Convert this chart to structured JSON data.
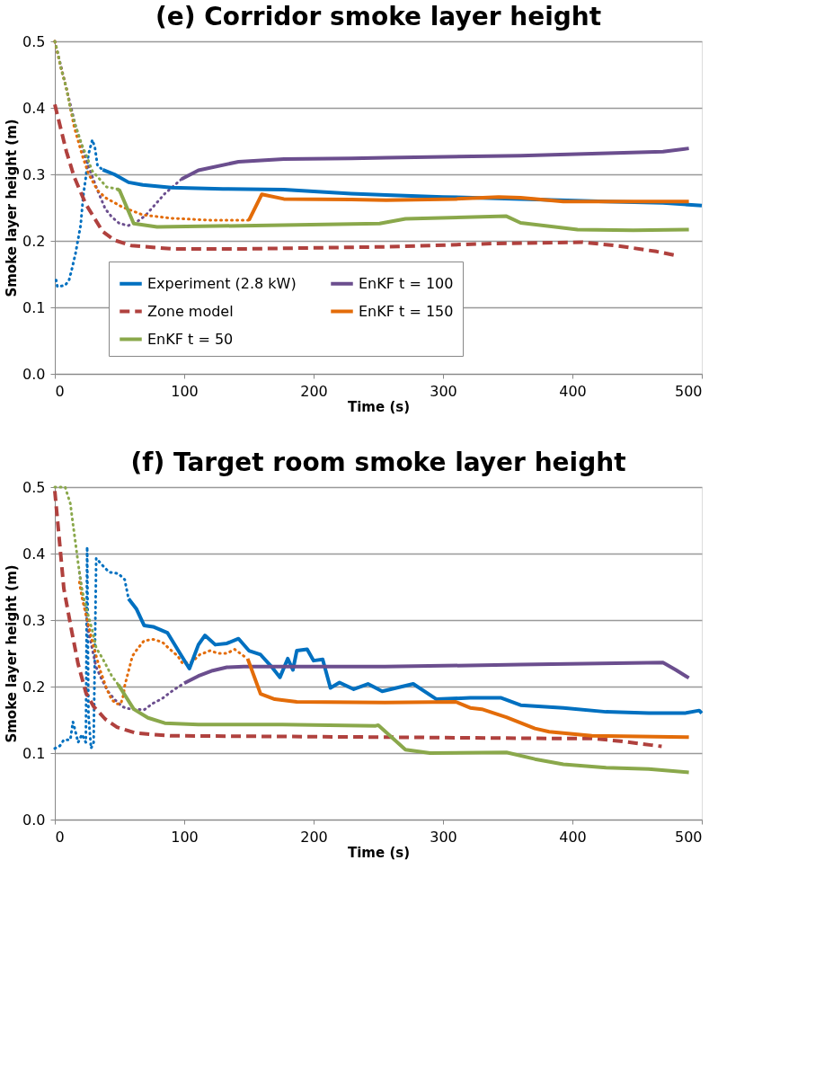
{
  "chart_data": [
    {
      "type": "line",
      "title": "(e) Corridor smoke layer height",
      "xlabel": "Time (s)",
      "ylabel": "Smoke layer height (m)",
      "xlim": [
        0,
        500
      ],
      "xticks": [
        0,
        100,
        200,
        300,
        400,
        500
      ],
      "ylim": [
        0,
        0.5
      ],
      "yticks": [
        {
          "value": 0,
          "label": "0.0"
        },
        0.1,
        0.2,
        0.3,
        0.4,
        0.5
      ],
      "grid": "y",
      "legend": "bottom",
      "series": [
        {
          "name": "Experiment (2.8 kW)",
          "color": "#0070c0",
          "line_style": "solid",
          "x": [
            37,
            46,
            57,
            68,
            90,
            130,
            177,
            229,
            256,
            300,
            360,
            426,
            470,
            500
          ],
          "values": [
            0.307,
            0.3,
            0.288,
            0.284,
            0.28,
            0.278,
            0.277,
            0.271,
            0.269,
            0.266,
            0.263,
            0.259,
            0.257,
            0.253
          ]
        },
        {
          "name": "Zone model",
          "color": "#b0413e",
          "line_style": "dashed",
          "x": [
            0,
            9,
            15,
            24,
            37,
            46,
            59,
            90,
            150,
            256,
            340,
            408,
            437,
            465,
            480
          ],
          "values": [
            0.405,
            0.334,
            0.296,
            0.255,
            0.214,
            0.201,
            0.193,
            0.188,
            0.188,
            0.191,
            0.196,
            0.198,
            0.192,
            0.184,
            0.178
          ]
        },
        {
          "name": "EnKF t = 50",
          "color": "#8aa84b",
          "line_style": "solid",
          "x": [
            48,
            50,
            61,
            79,
            155,
            251,
            271,
            349,
            360,
            404,
            447,
            490
          ],
          "values": [
            0.278,
            0.276,
            0.226,
            0.221,
            0.223,
            0.226,
            0.233,
            0.237,
            0.227,
            0.217,
            0.216,
            0.217
          ]
        },
        {
          "name": "EnKF t = 100",
          "color": "#6b4e8e",
          "line_style": "solid",
          "x": [
            98,
            111,
            142,
            177,
            229,
            256,
            360,
            470,
            490
          ],
          "values": [
            0.293,
            0.306,
            0.319,
            0.323,
            0.324,
            0.325,
            0.328,
            0.334,
            0.339
          ]
        },
        {
          "name": "EnKF t = 150",
          "color": "#e36c09",
          "line_style": "solid",
          "x": [
            150,
            160,
            177,
            229,
            256,
            310,
            343,
            360,
            393,
            490
          ],
          "values": [
            0.231,
            0.27,
            0.263,
            0.262,
            0.261,
            0.263,
            0.266,
            0.265,
            0.259,
            0.259
          ]
        },
        {
          "color": "#0070c0",
          "line_style": "dotted",
          "x": [
            1,
            2,
            8,
            11,
            13,
            16,
            20,
            22,
            24,
            26,
            29,
            31,
            33,
            37
          ],
          "values": [
            0.141,
            0.131,
            0.133,
            0.141,
            0.156,
            0.181,
            0.224,
            0.268,
            0.296,
            0.33,
            0.352,
            0.34,
            0.313,
            0.307
          ]
        },
        {
          "color": "#6b4e8e",
          "line_style": "dotted",
          "x": [
            0,
            9,
            16,
            25,
            33,
            39,
            44,
            50,
            57,
            63,
            70,
            75,
            80,
            85,
            91,
            98
          ],
          "values": [
            0.5,
            0.429,
            0.373,
            0.317,
            0.276,
            0.248,
            0.236,
            0.226,
            0.223,
            0.228,
            0.238,
            0.249,
            0.26,
            0.271,
            0.281,
            0.293
          ]
        },
        {
          "color": "#e36c09",
          "line_style": "dotted",
          "x": [
            0,
            5,
            9,
            15,
            21,
            26,
            33,
            39,
            52,
            68,
            90,
            120,
            150
          ],
          "values": [
            0.5,
            0.458,
            0.429,
            0.371,
            0.33,
            0.301,
            0.276,
            0.265,
            0.251,
            0.239,
            0.234,
            0.231,
            0.231
          ]
        },
        {
          "color": "#8aa84b",
          "line_style": "dotted",
          "x": [
            0,
            2,
            5,
            9,
            12,
            16,
            21,
            24,
            29,
            35,
            40,
            48
          ],
          "values": [
            0.5,
            0.485,
            0.458,
            0.429,
            0.4,
            0.373,
            0.344,
            0.33,
            0.305,
            0.292,
            0.281,
            0.278
          ]
        }
      ]
    },
    {
      "type": "line",
      "title": "(f) Target room smoke layer height",
      "xlabel": "Time (s)",
      "ylabel": "Smoke layer height (m)",
      "xlim": [
        0,
        500
      ],
      "xticks": [
        0,
        100,
        200,
        300,
        400,
        500
      ],
      "ylim": [
        0,
        0.5
      ],
      "yticks": [
        {
          "value": 0,
          "label": "0.0"
        },
        0.1,
        0.2,
        0.3,
        0.4,
        0.5
      ],
      "grid": "y",
      "legend": "top right",
      "series": [
        {
          "name": "Experiment (2.8 kW)",
          "color": "#0070c0",
          "line_style": "solid",
          "x": [
            57,
            63,
            69,
            76,
            87,
            98,
            104,
            111,
            116,
            124,
            133,
            142,
            150,
            159,
            167,
            174,
            180,
            184,
            187,
            195,
            200,
            207,
            213,
            220,
            231,
            242,
            253,
            277,
            295,
            321,
            345,
            360,
            393,
            426,
            459,
            487,
            498,
            500
          ],
          "values": [
            0.332,
            0.317,
            0.292,
            0.29,
            0.281,
            0.246,
            0.227,
            0.263,
            0.277,
            0.263,
            0.265,
            0.272,
            0.254,
            0.248,
            0.231,
            0.214,
            0.242,
            0.225,
            0.254,
            0.256,
            0.239,
            0.241,
            0.198,
            0.206,
            0.196,
            0.204,
            0.193,
            0.204,
            0.181,
            0.183,
            0.183,
            0.172,
            0.168,
            0.162,
            0.16,
            0.16,
            0.164,
            0.16
          ]
        },
        {
          "name": "Zone model",
          "color": "#b0413e",
          "line_style": "dashed",
          "x": [
            0,
            3,
            7,
            13,
            18,
            24,
            30,
            39,
            48,
            63,
            89,
            253,
            382,
            415,
            437,
            461,
            469
          ],
          "values": [
            0.494,
            0.431,
            0.347,
            0.284,
            0.234,
            0.191,
            0.17,
            0.151,
            0.139,
            0.13,
            0.126,
            0.124,
            0.122,
            0.122,
            0.118,
            0.112,
            0.11
          ]
        },
        {
          "name": "EnKF t = 50",
          "color": "#8aa84b",
          "line_style": "solid",
          "x": [
            49,
            61,
            72,
            85,
            111,
            176,
            248,
            250,
            271,
            290,
            349,
            371,
            393,
            426,
            459,
            490
          ],
          "values": [
            0.203,
            0.166,
            0.153,
            0.145,
            0.143,
            0.143,
            0.141,
            0.142,
            0.105,
            0.1,
            0.101,
            0.091,
            0.083,
            0.078,
            0.076,
            0.071
          ]
        },
        {
          "name": "EnKF t = 100",
          "color": "#6b4e8e",
          "line_style": "solid",
          "x": [
            100,
            111,
            122,
            133,
            146,
            255,
            360,
            470,
            480,
            490
          ],
          "values": [
            0.205,
            0.216,
            0.224,
            0.229,
            0.23,
            0.23,
            0.233,
            0.236,
            0.225,
            0.213
          ]
        },
        {
          "name": "EnKF t = 150",
          "color": "#e36c09",
          "line_style": "solid",
          "x": [
            149,
            159,
            170,
            187,
            255,
            310,
            321,
            330,
            349,
            371,
            382,
            415,
            490
          ],
          "values": [
            0.242,
            0.189,
            0.181,
            0.177,
            0.176,
            0.177,
            0.168,
            0.166,
            0.154,
            0.137,
            0.132,
            0.126,
            0.124
          ]
        },
        {
          "color": "#0070c0",
          "line_style": "dotted",
          "x": [
            0,
            4,
            7,
            12,
            14,
            16,
            18,
            21,
            24,
            25,
            26,
            28,
            30,
            32,
            37,
            42,
            49,
            54,
            57
          ],
          "values": [
            0.107,
            0.111,
            0.12,
            0.12,
            0.147,
            0.132,
            0.116,
            0.128,
            0.116,
            0.41,
            0.158,
            0.107,
            0.116,
            0.393,
            0.382,
            0.372,
            0.37,
            0.361,
            0.332
          ]
        },
        {
          "color": "#6b4e8e",
          "line_style": "dotted",
          "x": [
            19,
            21,
            24,
            26,
            29,
            32,
            36,
            41,
            46,
            52,
            56,
            62,
            69,
            76,
            83,
            89,
            95,
            100
          ],
          "values": [
            0.372,
            0.343,
            0.313,
            0.284,
            0.256,
            0.229,
            0.212,
            0.193,
            0.181,
            0.17,
            0.167,
            0.166,
            0.165,
            0.175,
            0.182,
            0.191,
            0.199,
            0.205
          ]
        },
        {
          "color": "#e36c09",
          "line_style": "dotted",
          "x": [
            19,
            21,
            25,
            30,
            35,
            40,
            44,
            48,
            51,
            53,
            54,
            56,
            58,
            60,
            64,
            69,
            76,
            83,
            89,
            95,
            99,
            106,
            112,
            120,
            126,
            133,
            139,
            146,
            149
          ],
          "values": [
            0.357,
            0.334,
            0.3,
            0.26,
            0.225,
            0.197,
            0.18,
            0.174,
            0.174,
            0.187,
            0.201,
            0.216,
            0.231,
            0.246,
            0.257,
            0.269,
            0.271,
            0.267,
            0.256,
            0.246,
            0.234,
            0.237,
            0.248,
            0.254,
            0.25,
            0.25,
            0.256,
            0.246,
            0.242
          ]
        },
        {
          "color": "#8aa84b",
          "line_style": "dotted",
          "x": [
            0,
            8,
            12,
            14,
            16,
            18,
            21,
            25,
            29,
            32,
            37,
            44,
            49
          ],
          "values": [
            0.5,
            0.5,
            0.475,
            0.445,
            0.416,
            0.386,
            0.345,
            0.313,
            0.284,
            0.258,
            0.242,
            0.216,
            0.203
          ]
        }
      ]
    }
  ]
}
